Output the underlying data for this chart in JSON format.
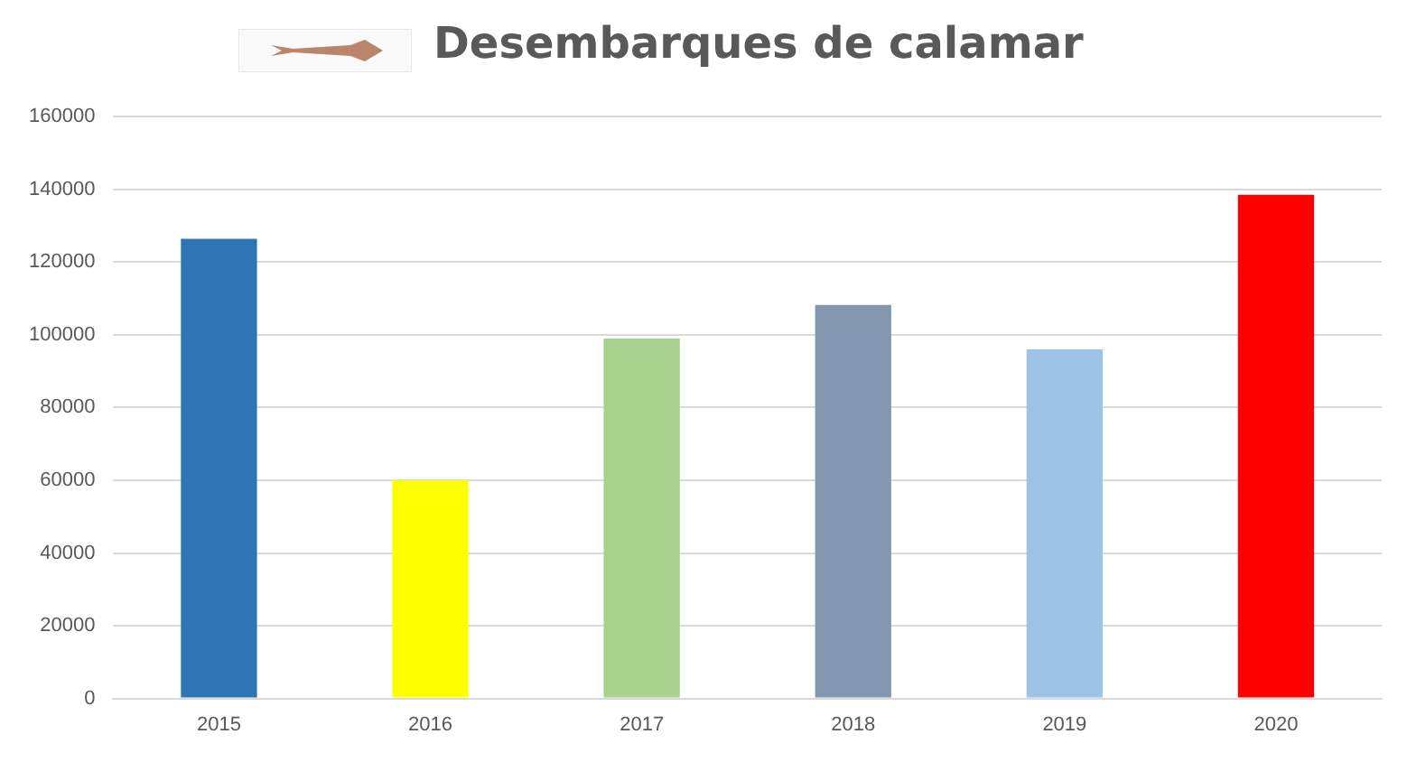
{
  "chart_data": {
    "type": "bar",
    "title": "Desembarques de calamar",
    "categories": [
      "2015",
      "2016",
      "2017",
      "2018",
      "2019",
      "2020"
    ],
    "values": [
      126400,
      60000,
      99000,
      108200,
      96000,
      138500
    ],
    "colors": [
      "#2e75b6",
      "#ffff00",
      "#a9d18e",
      "#8497b0",
      "#9dc3e6",
      "#ff0000"
    ],
    "ylim": [
      0,
      160000
    ],
    "yticks": [
      0,
      20000,
      40000,
      60000,
      80000,
      100000,
      120000,
      140000,
      160000
    ],
    "grid": "y",
    "legend": false
  }
}
